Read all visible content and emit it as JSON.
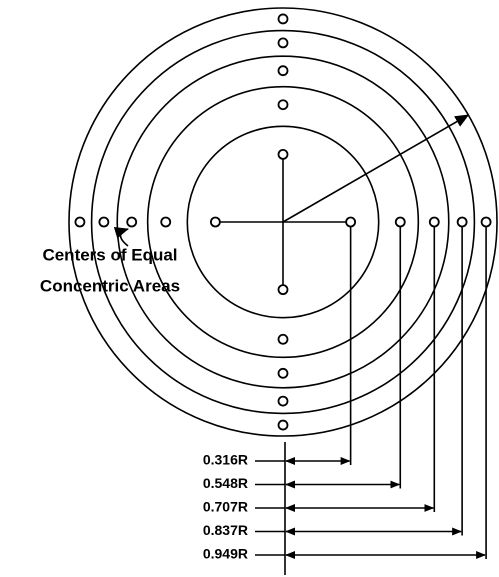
{
  "annotation": [
    "Centers of Equal",
    "Concentric Areas"
  ],
  "radius_labels": [
    "0.316R",
    "0.548R",
    "0.707R",
    "0.837R",
    "0.949R"
  ]
}
